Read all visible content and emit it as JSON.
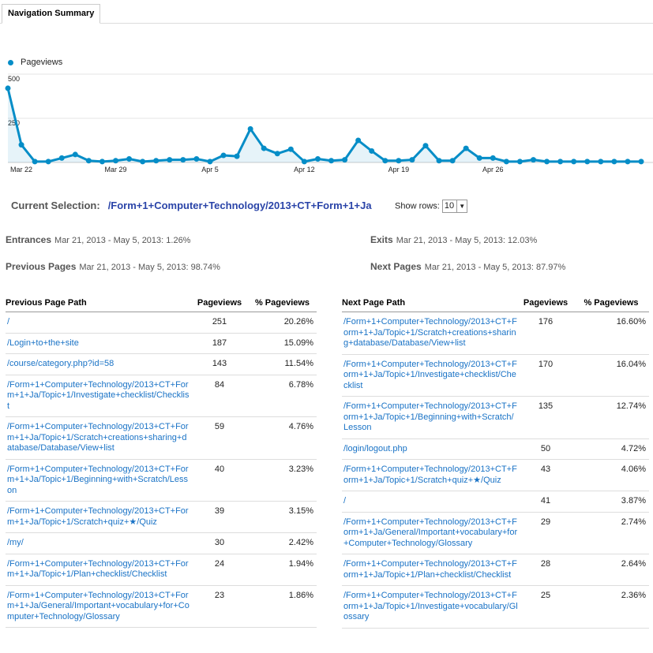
{
  "tab": {
    "label": "Navigation Summary"
  },
  "legend": {
    "label": "Pageviews"
  },
  "chart_data": {
    "type": "area",
    "series": [
      {
        "name": "Pageviews",
        "values": [
          420,
          100,
          5,
          5,
          25,
          45,
          10,
          5,
          10,
          20,
          5,
          10,
          15,
          15,
          20,
          5,
          40,
          35,
          190,
          80,
          50,
          75,
          5,
          20,
          10,
          15,
          125,
          65,
          10,
          10,
          15,
          95,
          10,
          10,
          80,
          25,
          25,
          5,
          5,
          15,
          5,
          5,
          5,
          5,
          5,
          5,
          5,
          5
        ]
      }
    ],
    "y_ticks": [
      500,
      250
    ],
    "ylim": [
      0,
      500
    ],
    "x_labels": [
      {
        "index": 1,
        "label": "Mar 22"
      },
      {
        "index": 8,
        "label": "Mar 29"
      },
      {
        "index": 15,
        "label": "Apr 5"
      },
      {
        "index": 22,
        "label": "Apr 12"
      },
      {
        "index": 29,
        "label": "Apr 19"
      },
      {
        "index": 36,
        "label": "Apr 26"
      }
    ],
    "color": "#058dc7"
  },
  "selection": {
    "label": "Current Selection:",
    "path": "/Form+1+Computer+Technology/2013+CT+Form+1+Ja",
    "show_rows_label": "Show rows:",
    "show_rows_value": "10"
  },
  "stats": {
    "entrances_label": "Entrances",
    "entrances_value": "Mar 21, 2013 - May 5, 2013: 1.26%",
    "exits_label": "Exits",
    "exits_value": "Mar 21, 2013 - May 5, 2013: 12.03%",
    "prev_label": "Previous Pages",
    "prev_value": "Mar 21, 2013 - May 5, 2013: 98.74%",
    "next_label": "Next Pages",
    "next_value": "Mar 21, 2013 - May 5, 2013: 87.97%"
  },
  "prev_table": {
    "headers": [
      "Previous Page Path",
      "Pageviews",
      "% Pageviews"
    ],
    "rows": [
      {
        "path": "/",
        "views": "251",
        "pct": "20.26%"
      },
      {
        "path": "/Login+to+the+site",
        "views": "187",
        "pct": "15.09%"
      },
      {
        "path": "/course/category.php?id=58",
        "views": "143",
        "pct": "11.54%"
      },
      {
        "path": "/Form+1+Computer+Technology/2013+CT+Form+1+Ja/Topic+1/Investigate+checklist/Checklist",
        "views": "84",
        "pct": "6.78%"
      },
      {
        "path": "/Form+1+Computer+Technology/2013+CT+Form+1+Ja/Topic+1/Scratch+creations+sharing+database/Database/View+list",
        "views": "59",
        "pct": "4.76%"
      },
      {
        "path": "/Form+1+Computer+Technology/2013+CT+Form+1+Ja/Topic+1/Beginning+with+Scratch/Lesson",
        "views": "40",
        "pct": "3.23%"
      },
      {
        "path": "/Form+1+Computer+Technology/2013+CT+Form+1+Ja/Topic+1/Scratch+quiz+★/Quiz",
        "views": "39",
        "pct": "3.15%"
      },
      {
        "path": "/my/",
        "views": "30",
        "pct": "2.42%"
      },
      {
        "path": "/Form+1+Computer+Technology/2013+CT+Form+1+Ja/Topic+1/Plan+checklist/Checklist",
        "views": "24",
        "pct": "1.94%"
      },
      {
        "path": "/Form+1+Computer+Technology/2013+CT+Form+1+Ja/General/Important+vocabulary+for+Computer+Technology/Glossary",
        "views": "23",
        "pct": "1.86%"
      }
    ]
  },
  "next_table": {
    "headers": [
      "Next Page Path",
      "Pageviews",
      "% Pageviews"
    ],
    "rows": [
      {
        "path": "/Form+1+Computer+Technology/2013+CT+Form+1+Ja/Topic+1/Scratch+creations+sharing+database/Database/View+list",
        "views": "176",
        "pct": "16.60%"
      },
      {
        "path": "/Form+1+Computer+Technology/2013+CT+Form+1+Ja/Topic+1/Investigate+checklist/Checklist",
        "views": "170",
        "pct": "16.04%"
      },
      {
        "path": "/Form+1+Computer+Technology/2013+CT+Form+1+Ja/Topic+1/Beginning+with+Scratch/Lesson",
        "views": "135",
        "pct": "12.74%"
      },
      {
        "path": "/login/logout.php",
        "views": "50",
        "pct": "4.72%"
      },
      {
        "path": "/Form+1+Computer+Technology/2013+CT+Form+1+Ja/Topic+1/Scratch+quiz+★/Quiz",
        "views": "43",
        "pct": "4.06%"
      },
      {
        "path": "/",
        "views": "41",
        "pct": "3.87%"
      },
      {
        "path": "/Form+1+Computer+Technology/2013+CT+Form+1+Ja/General/Important+vocabulary+for+Computer+Technology/Glossary",
        "views": "29",
        "pct": "2.74%"
      },
      {
        "path": "/Form+1+Computer+Technology/2013+CT+Form+1+Ja/Topic+1/Plan+checklist/Checklist",
        "views": "28",
        "pct": "2.64%"
      },
      {
        "path": "/Form+1+Computer+Technology/2013+CT+Form+1+Ja/Topic+1/Investigate+vocabulary/Glossary",
        "views": "25",
        "pct": "2.36%"
      }
    ]
  }
}
